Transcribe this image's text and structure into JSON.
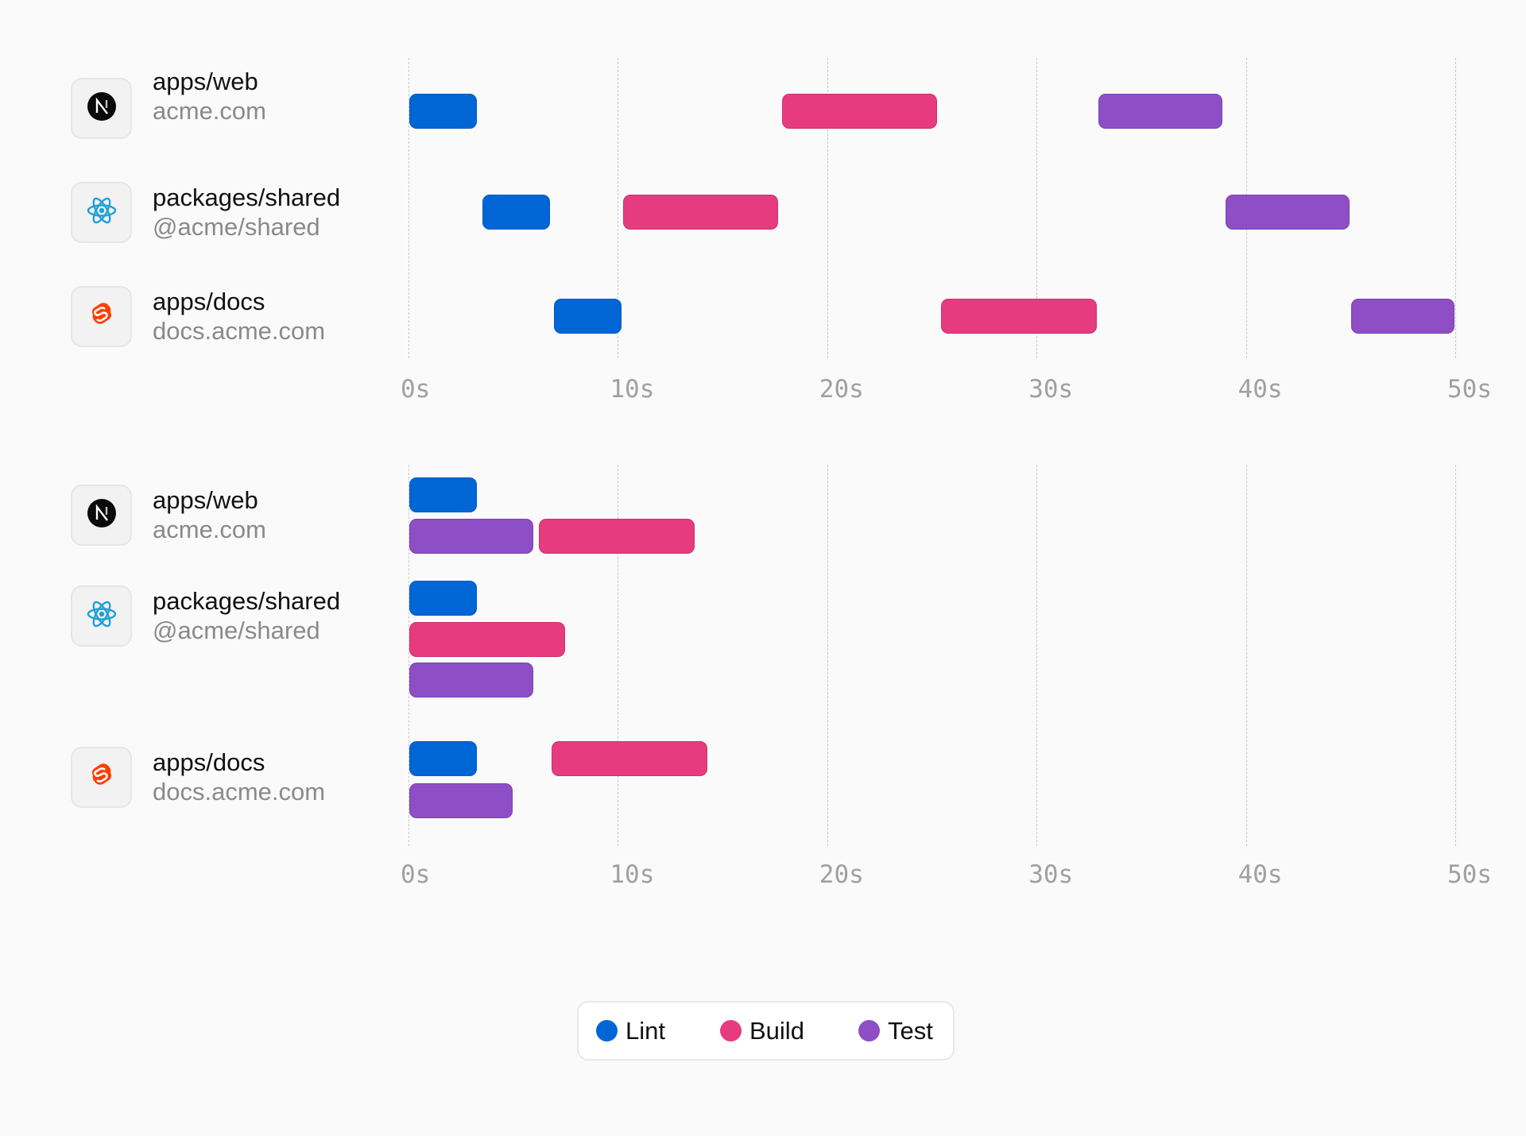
{
  "colors": {
    "Lint": "#0066d6",
    "Build": "#e63b7f",
    "Test": "#8d4ec6"
  },
  "projects": [
    {
      "name": "apps/web",
      "sub": "acme.com",
      "icon": "nextjs-icon"
    },
    {
      "name": "packages/shared",
      "sub": "@acme/shared",
      "icon": "react-icon"
    },
    {
      "name": "apps/docs",
      "sub": "docs.acme.com",
      "icon": "svelte-icon"
    }
  ],
  "legend": [
    {
      "label": "Lint",
      "color": "#0066d6"
    },
    {
      "label": "Build",
      "color": "#e63b7f"
    },
    {
      "label": "Test",
      "color": "#8d4ec6"
    }
  ],
  "chart_data": [
    {
      "type": "gantt",
      "xlim": [
        0,
        50
      ],
      "ticks": [
        "0s",
        "10s",
        "20s",
        "30s",
        "40s",
        "50s"
      ],
      "grid": true,
      "rows": [
        {
          "project": "apps/web",
          "tasks": [
            {
              "task": "Lint",
              "start": 0,
              "end": 3.3
            },
            {
              "task": "Build",
              "start": 17.8,
              "end": 25.3
            },
            {
              "task": "Test",
              "start": 32.9,
              "end": 38.9
            }
          ]
        },
        {
          "project": "packages/shared",
          "tasks": [
            {
              "task": "Lint",
              "start": 3.5,
              "end": 6.8
            },
            {
              "task": "Build",
              "start": 10.2,
              "end": 17.7
            },
            {
              "task": "Test",
              "start": 39,
              "end": 45
            }
          ]
        },
        {
          "project": "apps/docs",
          "tasks": [
            {
              "task": "Lint",
              "start": 6.9,
              "end": 10.2
            },
            {
              "task": "Build",
              "start": 25.4,
              "end": 32.9
            },
            {
              "task": "Test",
              "start": 45,
              "end": 50
            }
          ]
        }
      ]
    },
    {
      "type": "gantt",
      "xlim": [
        0,
        50
      ],
      "ticks": [
        "0s",
        "10s",
        "20s",
        "30s",
        "40s",
        "50s"
      ],
      "grid": true,
      "rows": [
        {
          "project": "apps/web",
          "tasks": [
            {
              "task": "Lint",
              "start": 0,
              "end": 3.3
            },
            {
              "task": "Test",
              "start": 0,
              "end": 6
            },
            {
              "task": "Build",
              "start": 6.2,
              "end": 13.7
            }
          ]
        },
        {
          "project": "packages/shared",
          "tasks": [
            {
              "task": "Lint",
              "start": 0,
              "end": 3.3
            },
            {
              "task": "Build",
              "start": 0,
              "end": 7.5
            },
            {
              "task": "Test",
              "start": 0,
              "end": 6
            }
          ]
        },
        {
          "project": "apps/docs",
          "tasks": [
            {
              "task": "Lint",
              "start": 0,
              "end": 3.3
            },
            {
              "task": "Build",
              "start": 6.8,
              "end": 14.3
            },
            {
              "task": "Test",
              "start": 0,
              "end": 5
            }
          ]
        }
      ]
    }
  ]
}
